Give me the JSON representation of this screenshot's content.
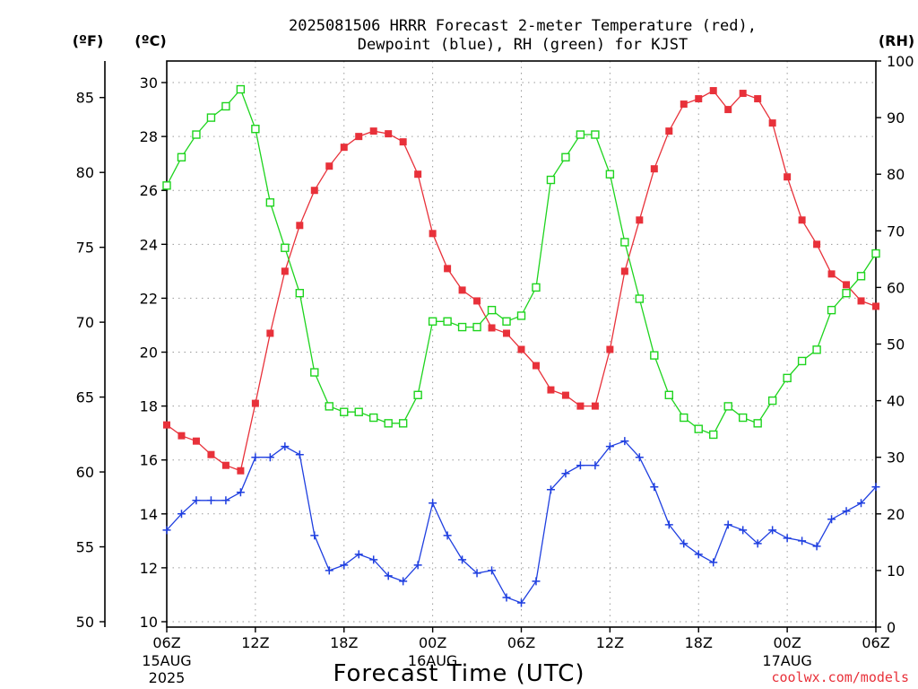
{
  "header": {
    "title_line1": "2025081506 HRRR Forecast 2-meter Temperature (red),",
    "title_line2": "Dewpoint (blue), RH (green) for KJST"
  },
  "units": {
    "fahrenheit": "(ºF)",
    "celsius": "(ºC)",
    "rh": "(RH)"
  },
  "footer": {
    "xlabel": "Forecast Time (UTC)",
    "credit": "coolwx.com/models"
  },
  "colors": {
    "temperature": "#e8313a",
    "dewpoint": "#1f3fe0",
    "rh": "#1ed41e",
    "grid": "#9a9a9a"
  },
  "chart_data": {
    "type": "line",
    "title": "2025081506 HRRR Forecast 2-meter Temperature (red), Dewpoint (blue), RH (green) for KJST",
    "xlabel": "Forecast Time (UTC)",
    "x_hours": [
      0,
      1,
      2,
      3,
      4,
      5,
      6,
      7,
      8,
      9,
      10,
      11,
      12,
      13,
      14,
      15,
      16,
      17,
      18,
      19,
      20,
      21,
      22,
      23,
      24,
      25,
      26,
      27,
      28,
      29,
      30,
      31,
      32,
      33,
      34,
      35,
      36,
      37,
      38,
      39,
      40,
      41,
      42,
      43,
      44,
      45,
      46,
      47,
      48
    ],
    "x_ticks": [
      {
        "hour": 0,
        "label": "06Z",
        "sub1": "15AUG",
        "sub2": "2025"
      },
      {
        "hour": 6,
        "label": "12Z",
        "sub1": "",
        "sub2": ""
      },
      {
        "hour": 12,
        "label": "18Z",
        "sub1": "",
        "sub2": ""
      },
      {
        "hour": 18,
        "label": "00Z",
        "sub1": "16AUG",
        "sub2": ""
      },
      {
        "hour": 24,
        "label": "06Z",
        "sub1": "",
        "sub2": ""
      },
      {
        "hour": 30,
        "label": "12Z",
        "sub1": "",
        "sub2": ""
      },
      {
        "hour": 36,
        "label": "18Z",
        "sub1": "",
        "sub2": ""
      },
      {
        "hour": 42,
        "label": "00Z",
        "sub1": "17AUG",
        "sub2": ""
      },
      {
        "hour": 48,
        "label": "06Z",
        "sub1": "",
        "sub2": ""
      }
    ],
    "y_celsius": {
      "range": [
        9.8,
        30.8
      ],
      "ticks": [
        10,
        12,
        14,
        16,
        18,
        20,
        22,
        24,
        26,
        28,
        30
      ]
    },
    "y_fahrenheit": {
      "ticks": [
        50,
        55,
        60,
        65,
        70,
        75,
        80,
        85
      ]
    },
    "y_rh": {
      "range": [
        0,
        100
      ],
      "ticks": [
        0,
        10,
        20,
        30,
        40,
        50,
        60,
        70,
        80,
        90,
        100
      ]
    },
    "grid": true,
    "series": [
      {
        "name": "Temperature",
        "unit": "C",
        "marker": "filled-square",
        "values": [
          17.3,
          16.9,
          16.7,
          16.2,
          15.8,
          15.6,
          18.1,
          20.7,
          23.0,
          24.7,
          26.0,
          26.9,
          27.6,
          28.0,
          28.2,
          28.1,
          27.8,
          26.6,
          24.4,
          23.1,
          22.3,
          21.9,
          20.9,
          20.7,
          20.1,
          19.5,
          18.6,
          18.4,
          18.0,
          18.0,
          20.1,
          23.0,
          24.9,
          26.8,
          28.2,
          29.2,
          29.4,
          29.7,
          29.0,
          29.6,
          29.4,
          28.5,
          26.5,
          24.9,
          24.0,
          22.9,
          22.5,
          21.9,
          21.7
        ]
      },
      {
        "name": "Dewpoint",
        "unit": "C",
        "marker": "plus",
        "values": [
          13.4,
          14.0,
          14.5,
          14.5,
          14.5,
          14.8,
          16.1,
          16.1,
          16.5,
          16.2,
          13.2,
          11.9,
          12.1,
          12.5,
          12.3,
          11.7,
          11.5,
          12.1,
          14.4,
          13.2,
          12.3,
          11.8,
          11.9,
          10.9,
          10.7,
          11.5,
          14.9,
          15.5,
          15.8,
          15.8,
          16.5,
          16.7,
          16.1,
          15.0,
          13.6,
          12.9,
          12.5,
          12.2,
          13.6,
          13.4,
          12.9,
          13.4,
          13.1,
          13.0,
          12.8,
          13.8,
          14.1,
          14.4,
          15.0
        ]
      },
      {
        "name": "RH",
        "unit": "%",
        "marker": "open-square",
        "values": [
          78,
          83,
          87,
          90,
          92,
          95,
          88,
          75,
          67,
          59,
          45,
          39,
          38,
          38,
          37,
          36,
          36,
          41,
          54,
          54,
          53,
          53,
          56,
          54,
          55,
          60,
          79,
          83,
          87,
          87,
          80,
          68,
          58,
          48,
          41,
          37,
          35,
          34,
          39,
          37,
          36,
          40,
          44,
          47,
          49,
          56,
          59,
          62,
          66
        ]
      }
    ]
  }
}
